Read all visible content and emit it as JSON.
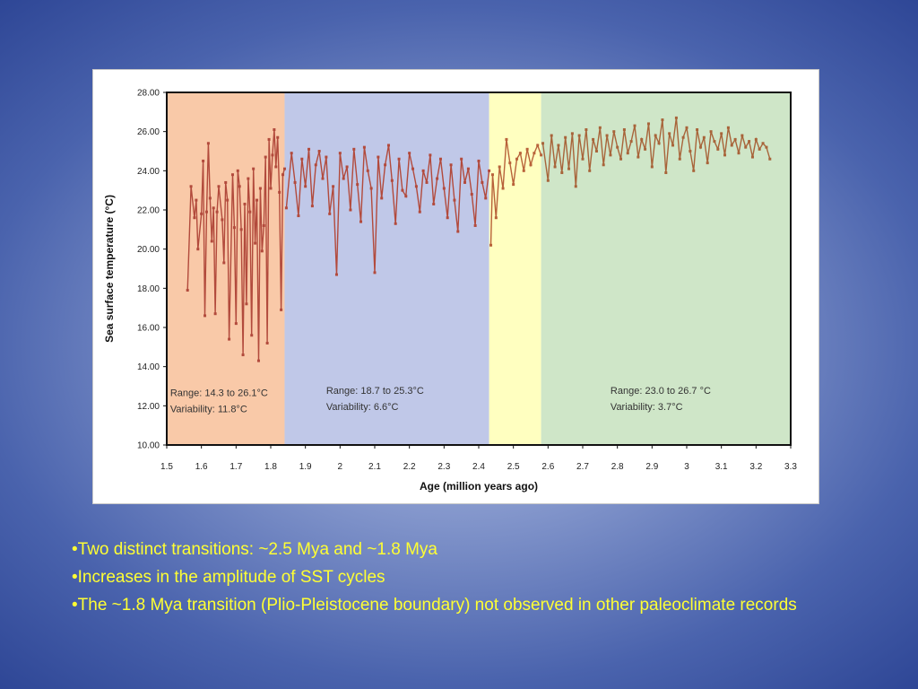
{
  "bullets": [
    "•Two distinct transitions: ~2.5 Mya and ~1.8 Mya",
    "•Increases in the amplitude of SST cycles",
    "•The ~1.8 Mya transition (Plio-Pleistocene boundary) not observed in other paleoclimate records"
  ],
  "chart_data": {
    "type": "line",
    "title": "",
    "xlabel": "Age (million years ago)",
    "ylabel": "Sea surface temperature (°C)",
    "xlim": [
      1.5,
      3.3
    ],
    "ylim": [
      10,
      28
    ],
    "x_ticks": [
      "1.5",
      "1.6",
      "1.7",
      "1.8",
      "1.9",
      "2",
      "2.1",
      "2.2",
      "2.3",
      "2.4",
      "2.5",
      "2.6",
      "2.7",
      "2.8",
      "2.9",
      "3",
      "3.1",
      "3.2",
      "3.3"
    ],
    "y_ticks": [
      "10.00",
      "12.00",
      "14.00",
      "16.00",
      "18.00",
      "20.00",
      "22.00",
      "24.00",
      "26.00",
      "28.00"
    ],
    "grid": false,
    "legend": "none",
    "bands": [
      {
        "x_start": 1.5,
        "x_end": 1.84,
        "color": "#f9c9a8"
      },
      {
        "x_start": 1.84,
        "x_end": 2.43,
        "color": "#c0c8e8"
      },
      {
        "x_start": 2.43,
        "x_end": 2.58,
        "color": "#ffffc0"
      },
      {
        "x_start": 2.58,
        "x_end": 3.3,
        "color": "#cfe6c8"
      }
    ],
    "annotations": [
      {
        "lines": [
          "Range: 14.3 to 26.1°C",
          "Variability: 11.8°C"
        ],
        "x": 1.51,
        "y": 12.5
      },
      {
        "lines": [
          "Range: 18.7 to 25.3°C",
          "Variability: 6.6°C"
        ],
        "x": 1.96,
        "y": 12.6
      },
      {
        "lines": [
          "Range: 23.0 to 26.7 °C",
          "Variability: 3.7°C"
        ],
        "x": 2.78,
        "y": 12.6
      }
    ],
    "series": [
      {
        "color": "#b24a3c",
        "x": [
          1.56,
          1.57,
          1.58,
          1.585,
          1.59,
          1.6,
          1.605,
          1.61,
          1.615,
          1.62,
          1.625,
          1.63,
          1.635,
          1.64,
          1.645,
          1.65,
          1.66,
          1.665,
          1.67,
          1.675,
          1.68,
          1.69,
          1.695,
          1.7,
          1.705,
          1.71,
          1.715,
          1.72,
          1.725,
          1.73,
          1.735,
          1.74,
          1.745,
          1.75,
          1.755,
          1.76,
          1.765,
          1.77,
          1.775,
          1.78,
          1.785,
          1.79,
          1.795,
          1.8,
          1.805,
          1.81,
          1.815,
          1.82,
          1.825,
          1.83,
          1.835,
          1.84
        ],
        "y": [
          17.9,
          23.2,
          21.6,
          22.5,
          20.0,
          21.8,
          24.5,
          16.6,
          21.9,
          25.4,
          22.6,
          20.4,
          22.1,
          16.7,
          21.9,
          23.2,
          21.5,
          19.3,
          23.4,
          22.5,
          15.4,
          23.8,
          21.1,
          16.2,
          24.0,
          23.2,
          21.0,
          14.6,
          22.3,
          17.2,
          23.6,
          21.9,
          15.6,
          24.1,
          20.3,
          22.5,
          14.3,
          23.1,
          19.9,
          21.2,
          24.7,
          15.2,
          25.6,
          23.1,
          24.8,
          26.1,
          24.2,
          25.7,
          22.9,
          16.9,
          23.8,
          24.1
        ]
      },
      {
        "color": "#b24a3c",
        "x": [
          1.845,
          1.86,
          1.87,
          1.88,
          1.89,
          1.9,
          1.91,
          1.92,
          1.93,
          1.94,
          1.95,
          1.96,
          1.97,
          1.98,
          1.99,
          2.0,
          2.01,
          2.02,
          2.03,
          2.04,
          2.05,
          2.06,
          2.07,
          2.08,
          2.09,
          2.1,
          2.11,
          2.12,
          2.13,
          2.14,
          2.15,
          2.16,
          2.17,
          2.18,
          2.19,
          2.2,
          2.21,
          2.22,
          2.23,
          2.24,
          2.25,
          2.26,
          2.27,
          2.28,
          2.29,
          2.3,
          2.31,
          2.32,
          2.33,
          2.34,
          2.35,
          2.36,
          2.37,
          2.38,
          2.39,
          2.4,
          2.41,
          2.42,
          2.43
        ],
        "y": [
          22.1,
          24.9,
          23.4,
          21.7,
          24.6,
          23.2,
          25.1,
          22.2,
          24.3,
          25.0,
          23.6,
          24.7,
          21.8,
          23.2,
          18.7,
          24.9,
          23.6,
          24.2,
          22.0,
          25.1,
          23.3,
          21.4,
          25.2,
          24.0,
          23.1,
          18.8,
          24.7,
          22.6,
          24.3,
          25.3,
          23.5,
          21.3,
          24.6,
          23.0,
          22.7,
          24.9,
          24.1,
          23.2,
          21.9,
          24.0,
          23.4,
          24.8,
          22.3,
          23.6,
          24.6,
          23.1,
          21.6,
          24.3,
          22.5,
          20.9,
          24.6,
          23.4,
          24.1,
          22.8,
          21.2,
          24.5,
          23.4,
          22.6,
          24.0
        ]
      },
      {
        "color": "#b8623a",
        "x": [
          2.435,
          2.44,
          2.45,
          2.46,
          2.47,
          2.48,
          2.49,
          2.5,
          2.51,
          2.52,
          2.53,
          2.54,
          2.55,
          2.56,
          2.57,
          2.58
        ],
        "y": [
          20.2,
          23.8,
          21.6,
          24.2,
          23.1,
          25.6,
          24.4,
          23.3,
          24.6,
          24.9,
          24.0,
          25.1,
          24.3,
          24.9,
          25.3,
          24.8
        ]
      },
      {
        "color": "#a8643a",
        "x": [
          2.585,
          2.6,
          2.61,
          2.62,
          2.63,
          2.64,
          2.65,
          2.66,
          2.67,
          2.68,
          2.69,
          2.7,
          2.71,
          2.72,
          2.73,
          2.74,
          2.75,
          2.76,
          2.77,
          2.78,
          2.79,
          2.8,
          2.81,
          2.82,
          2.83,
          2.84,
          2.85,
          2.86,
          2.87,
          2.88,
          2.89,
          2.9,
          2.91,
          2.92,
          2.93,
          2.94,
          2.95,
          2.96,
          2.97,
          2.98,
          2.99,
          3.0,
          3.01,
          3.02,
          3.03,
          3.04,
          3.05,
          3.06,
          3.07,
          3.08,
          3.09,
          3.1,
          3.11,
          3.12,
          3.13,
          3.14,
          3.15,
          3.16,
          3.17,
          3.18,
          3.19,
          3.2,
          3.21,
          3.22,
          3.23,
          3.24
        ],
        "y": [
          25.4,
          23.5,
          25.8,
          24.2,
          25.3,
          23.9,
          25.7,
          24.1,
          25.9,
          23.2,
          25.8,
          24.6,
          26.1,
          24.0,
          25.6,
          25.0,
          26.2,
          24.3,
          25.8,
          24.8,
          26.0,
          25.2,
          24.6,
          26.1,
          24.9,
          25.5,
          26.3,
          24.7,
          25.6,
          25.1,
          26.4,
          24.2,
          25.8,
          25.4,
          26.6,
          23.9,
          25.9,
          25.3,
          26.7,
          24.6,
          25.7,
          26.2,
          25.0,
          24.0,
          26.1,
          25.2,
          25.7,
          24.4,
          26.0,
          25.5,
          25.1,
          25.9,
          24.8,
          26.2,
          25.3,
          25.6,
          24.9,
          25.8,
          25.2,
          25.5,
          24.7,
          25.6,
          25.1,
          25.4,
          25.2,
          24.6
        ]
      }
    ]
  }
}
